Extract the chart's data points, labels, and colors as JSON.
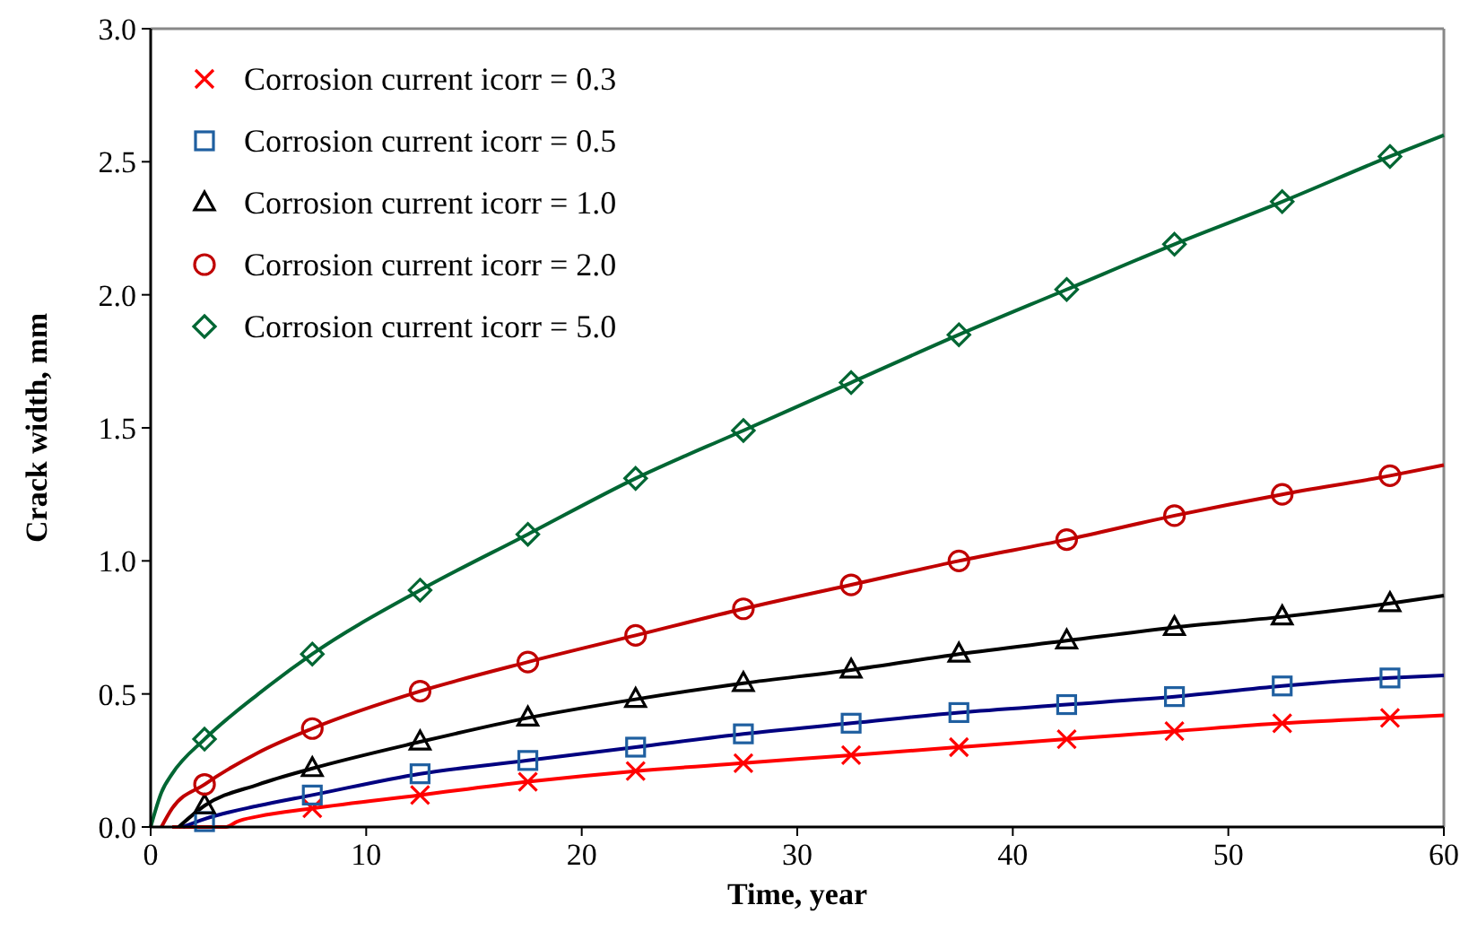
{
  "chart_data": {
    "type": "line",
    "xlabel": "Time, year",
    "ylabel": "Crack width, mm",
    "xlim": [
      0,
      60
    ],
    "xticks": [
      0,
      10,
      20,
      30,
      40,
      50,
      60
    ],
    "ylim": [
      0,
      3.0
    ],
    "yticks": [
      {
        "value": 0,
        "label": "0.0"
      },
      {
        "value": 0.5,
        "label": "0.5"
      },
      {
        "value": 1,
        "label": "1.0"
      },
      {
        "value": 1.5,
        "label": "1.5"
      },
      {
        "value": 2,
        "label": "2.0"
      },
      {
        "value": 2.5,
        "label": "2.5"
      },
      {
        "value": 3,
        "label": "3.0"
      }
    ],
    "grid": false,
    "legend": "top left",
    "line_style": "solid",
    "series": [
      {
        "color": "#ff0000",
        "marker": "none",
        "x": [
          1,
          3.5,
          4,
          5,
          7.5,
          12.5,
          17.5,
          22.5,
          27.5,
          32.5,
          37.5,
          42.5,
          47.5,
          52.5,
          57.5,
          60
        ],
        "values": [
          0,
          0,
          0.02,
          0.04,
          0.07,
          0.12,
          0.17,
          0.21,
          0.24,
          0.27,
          0.3,
          0.33,
          0.36,
          0.39,
          0.41,
          0.42
        ]
      },
      {
        "color": "#000080",
        "marker": "none",
        "x": [
          1.5,
          2.5,
          5,
          7.5,
          12.5,
          17.5,
          22.5,
          27.5,
          32.5,
          37.5,
          42.5,
          47.5,
          52.5,
          57.5,
          60
        ],
        "values": [
          0,
          0.03,
          0.08,
          0.12,
          0.2,
          0.25,
          0.3,
          0.35,
          0.39,
          0.43,
          0.46,
          0.49,
          0.53,
          0.56,
          0.57
        ]
      },
      {
        "color": "#000000",
        "marker": "none",
        "x": [
          1.3,
          2.5,
          5,
          7.5,
          12.5,
          17.5,
          22.5,
          27.5,
          32.5,
          37.5,
          42.5,
          47.5,
          52.5,
          57.5,
          60
        ],
        "values": [
          0,
          0.08,
          0.16,
          0.22,
          0.32,
          0.41,
          0.48,
          0.54,
          0.59,
          0.65,
          0.7,
          0.75,
          0.79,
          0.84,
          0.87
        ]
      },
      {
        "color": "#c00000",
        "marker": "none",
        "x": [
          0.5,
          1,
          2.5,
          5,
          7.5,
          12.5,
          17.5,
          22.5,
          27.5,
          32.5,
          37.5,
          42.5,
          47.5,
          52.5,
          57.5,
          60
        ],
        "values": [
          0,
          0.07,
          0.16,
          0.28,
          0.37,
          0.51,
          0.62,
          0.72,
          0.82,
          0.91,
          1.0,
          1.08,
          1.17,
          1.25,
          1.32,
          1.36
        ]
      },
      {
        "color": "#006633",
        "marker": "none",
        "x": [
          0,
          0.5,
          1,
          2.5,
          5,
          7.5,
          12.5,
          17.5,
          22.5,
          27.5,
          32.5,
          37.5,
          42.5,
          47.5,
          52.5,
          57.5,
          60
        ],
        "values": [
          0,
          0.13,
          0.2,
          0.33,
          0.5,
          0.65,
          0.89,
          1.1,
          1.31,
          1.49,
          1.67,
          1.85,
          2.02,
          2.19,
          2.35,
          2.52,
          2.6
        ]
      },
      {
        "type": "scatter",
        "name": "Corrosion current icorr = 0.3",
        "color": "#ff0000",
        "marker": "cross",
        "x": [
          7.5,
          12.5,
          17.5,
          22.5,
          27.5,
          32.5,
          37.5,
          42.5,
          47.5,
          52.5,
          57.5
        ],
        "values": [
          0.07,
          0.12,
          0.17,
          0.21,
          0.24,
          0.27,
          0.3,
          0.33,
          0.36,
          0.39,
          0.41
        ]
      },
      {
        "type": "scatter",
        "name": "Corrosion current icorr = 0.5",
        "color": "#1f5fa0",
        "marker": "square",
        "x": [
          2.5,
          7.5,
          12.5,
          17.5,
          22.5,
          27.5,
          32.5,
          37.5,
          42.5,
          47.5,
          52.5,
          57.5
        ],
        "values": [
          0.02,
          0.12,
          0.2,
          0.25,
          0.3,
          0.35,
          0.39,
          0.43,
          0.46,
          0.49,
          0.53,
          0.56
        ]
      },
      {
        "type": "scatter",
        "name": "Corrosion current icorr = 1.0",
        "color": "#000000",
        "marker": "triangle",
        "x": [
          2.5,
          7.5,
          12.5,
          17.5,
          22.5,
          27.5,
          32.5,
          37.5,
          42.5,
          47.5,
          52.5,
          57.5
        ],
        "values": [
          0.08,
          0.22,
          0.32,
          0.41,
          0.48,
          0.54,
          0.59,
          0.65,
          0.7,
          0.75,
          0.79,
          0.84
        ]
      },
      {
        "type": "scatter",
        "name": "Corrosion current icorr = 2.0",
        "color": "#c00000",
        "marker": "circle",
        "x": [
          2.5,
          7.5,
          12.5,
          17.5,
          22.5,
          27.5,
          32.5,
          37.5,
          42.5,
          47.5,
          52.5,
          57.5
        ],
        "values": [
          0.16,
          0.37,
          0.51,
          0.62,
          0.72,
          0.82,
          0.91,
          1.0,
          1.08,
          1.17,
          1.25,
          1.32
        ]
      },
      {
        "type": "scatter",
        "name": "Corrosion current icorr = 5.0",
        "color": "#006633",
        "marker": "diamond",
        "x": [
          2.5,
          7.5,
          12.5,
          17.5,
          22.5,
          27.5,
          32.5,
          37.5,
          42.5,
          47.5,
          52.5,
          57.5
        ],
        "values": [
          0.33,
          0.65,
          0.89,
          1.1,
          1.31,
          1.49,
          1.67,
          1.85,
          2.02,
          2.19,
          2.35,
          2.52
        ]
      }
    ]
  }
}
